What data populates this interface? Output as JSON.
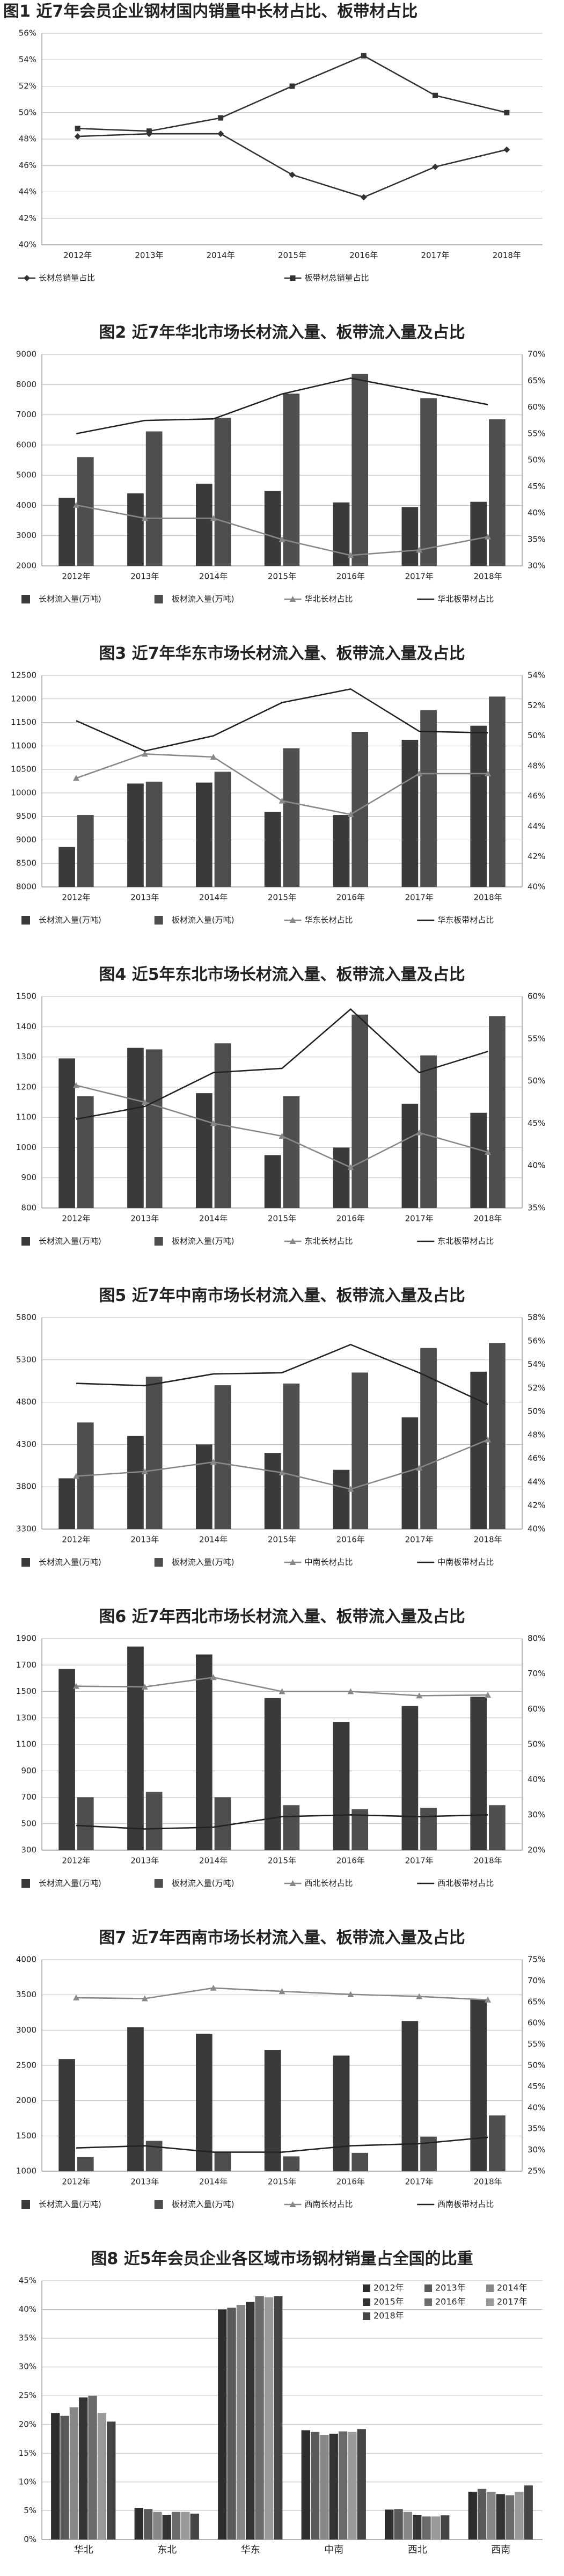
{
  "chart_data": [
    {
      "id": "fig1",
      "type": "line",
      "title": "图1 近7年会员企业钢材国内销量中长材占比、板带材占比",
      "categories": [
        "2012年",
        "2013年",
        "2014年",
        "2015年",
        "2016年",
        "2017年",
        "2018年"
      ],
      "ylim": [
        40,
        56
      ],
      "yticks": [
        "40%",
        "42%",
        "44%",
        "46%",
        "48%",
        "50%",
        "52%",
        "54%",
        "56%"
      ],
      "grid": true,
      "legend_position": "bottom",
      "series": [
        {
          "name": "长材总销量占比",
          "kind": "line",
          "axis": "left",
          "marker": "diamond",
          "color": "#333333",
          "values": [
            48.2,
            48.4,
            48.4,
            45.3,
            43.6,
            45.9,
            47.2
          ]
        },
        {
          "name": "板带材总销量占比",
          "kind": "line",
          "axis": "left",
          "marker": "square",
          "color": "#333333",
          "values": [
            48.8,
            48.6,
            49.6,
            52.0,
            54.3,
            51.3,
            50.0
          ]
        }
      ]
    },
    {
      "id": "fig2",
      "type": "bar",
      "title": "图2 近7年华北市场长材流入量、板带流入量及占比",
      "categories": [
        "2012年",
        "2013年",
        "2014年",
        "2015年",
        "2016年",
        "2017年",
        "2018年"
      ],
      "ylim": [
        2000,
        9000
      ],
      "yticks": [
        "2000",
        "3000",
        "4000",
        "5000",
        "6000",
        "7000",
        "8000",
        "9000"
      ],
      "y2lim": [
        30,
        70
      ],
      "y2ticks": [
        "30%",
        "35%",
        "40%",
        "45%",
        "50%",
        "55%",
        "60%",
        "65%",
        "70%"
      ],
      "grid": true,
      "legend_position": "bottom",
      "series": [
        {
          "name": "长材流入量(万吨)",
          "kind": "bar",
          "axis": "left",
          "color": "#3a3a3a",
          "values": [
            4250,
            4400,
            4720,
            4480,
            4100,
            3950,
            4120
          ]
        },
        {
          "name": "板材流入量(万吨)",
          "kind": "bar",
          "axis": "left",
          "color": "#4e4e4e",
          "values": [
            5600,
            6450,
            6900,
            7700,
            8350,
            7550,
            6850
          ]
        },
        {
          "name": "华北长材占比",
          "kind": "line",
          "axis": "right",
          "marker": "triangle",
          "color": "#888888",
          "values": [
            41.5,
            39.0,
            39.0,
            35.0,
            32.0,
            33.0,
            35.5
          ]
        },
        {
          "name": "华北板带材占比",
          "kind": "line",
          "axis": "right",
          "marker": "none",
          "color": "#222222",
          "values": [
            55.0,
            57.5,
            57.8,
            62.5,
            65.5,
            63.0,
            60.5
          ]
        }
      ]
    },
    {
      "id": "fig3",
      "type": "bar",
      "title": "图3 近7年华东市场长材流入量、板带流入量及占比",
      "categories": [
        "2012年",
        "2013年",
        "2014年",
        "2015年",
        "2016年",
        "2017年",
        "2018年"
      ],
      "ylim": [
        8000,
        12500
      ],
      "yticks": [
        "8000",
        "8500",
        "9000",
        "9500",
        "10000",
        "10500",
        "11000",
        "11500",
        "12000",
        "12500"
      ],
      "y2lim": [
        40,
        54
      ],
      "y2ticks": [
        "40%",
        "42%",
        "44%",
        "46%",
        "48%",
        "50%",
        "52%",
        "54%"
      ],
      "grid": true,
      "legend_position": "bottom",
      "series": [
        {
          "name": "长材流入量(万吨)",
          "kind": "bar",
          "axis": "left",
          "color": "#3a3a3a",
          "values": [
            8850,
            10200,
            10220,
            9600,
            9530,
            11130,
            11430
          ]
        },
        {
          "name": "板材流入量(万吨)",
          "kind": "bar",
          "axis": "left",
          "color": "#4e4e4e",
          "values": [
            9530,
            10240,
            10450,
            10950,
            11300,
            11760,
            12050
          ]
        },
        {
          "name": "华东长材占比",
          "kind": "line",
          "axis": "right",
          "marker": "triangle",
          "color": "#888888",
          "values": [
            47.2,
            48.8,
            48.6,
            45.7,
            44.8,
            47.5,
            47.5
          ]
        },
        {
          "name": "华东板带材占比",
          "kind": "line",
          "axis": "right",
          "marker": "none",
          "color": "#222222",
          "values": [
            51.0,
            49.0,
            50.0,
            52.2,
            53.1,
            50.3,
            50.2
          ]
        }
      ]
    },
    {
      "id": "fig4",
      "type": "bar",
      "title": "图4 近5年东北市场长材流入量、板带流入量及占比",
      "categories": [
        "2012年",
        "2013年",
        "2014年",
        "2015年",
        "2016年",
        "2017年",
        "2018年"
      ],
      "ylim": [
        800,
        1500
      ],
      "yticks": [
        "800",
        "900",
        "1000",
        "1100",
        "1200",
        "1300",
        "1400",
        "1500"
      ],
      "y2lim": [
        35,
        60
      ],
      "y2ticks": [
        "35%",
        "40%",
        "45%",
        "50%",
        "55%",
        "60%"
      ],
      "grid": true,
      "legend_position": "bottom",
      "series": [
        {
          "name": "长材流入量(万吨)",
          "kind": "bar",
          "axis": "left",
          "color": "#3a3a3a",
          "values": [
            1295,
            1330,
            1180,
            975,
            1000,
            1145,
            1115
          ]
        },
        {
          "name": "板材流入量(万吨)",
          "kind": "bar",
          "axis": "left",
          "color": "#4e4e4e",
          "values": [
            1170,
            1325,
            1345,
            1170,
            1440,
            1305,
            1435
          ]
        },
        {
          "name": "东北长材占比",
          "kind": "line",
          "axis": "right",
          "marker": "triangle",
          "color": "#888888",
          "values": [
            49.5,
            47.5,
            45.0,
            43.5,
            39.8,
            43.9,
            41.6
          ]
        },
        {
          "name": "东北板带材占比",
          "kind": "line",
          "axis": "right",
          "marker": "none",
          "color": "#222222",
          "values": [
            45.5,
            47.0,
            51.0,
            51.5,
            58.5,
            51.0,
            53.5
          ]
        }
      ]
    },
    {
      "id": "fig5",
      "type": "bar",
      "title": "图5 近7年中南市场长材流入量、板带流入量及占比",
      "categories": [
        "2012年",
        "2013年",
        "2014年",
        "2015年",
        "2016年",
        "2017年",
        "2018年"
      ],
      "ylim": [
        3300,
        5800
      ],
      "yticks": [
        "3300",
        "3800",
        "4300",
        "4800",
        "5300",
        "5800"
      ],
      "y2lim": [
        40,
        58
      ],
      "y2ticks": [
        "40%",
        "42%",
        "44%",
        "46%",
        "48%",
        "50%",
        "52%",
        "54%",
        "56%",
        "58%"
      ],
      "grid": true,
      "legend_position": "bottom",
      "series": [
        {
          "name": "长材流入量(万吨)",
          "kind": "bar",
          "axis": "left",
          "color": "#3a3a3a",
          "values": [
            3900,
            4400,
            4300,
            4200,
            4000,
            4620,
            5160
          ]
        },
        {
          "name": "板材流入量(万吨)",
          "kind": "bar",
          "axis": "left",
          "color": "#4e4e4e",
          "values": [
            4560,
            5100,
            5000,
            5020,
            5150,
            5440,
            5500
          ]
        },
        {
          "name": "中南长材占比",
          "kind": "line",
          "axis": "right",
          "marker": "triangle",
          "color": "#888888",
          "values": [
            44.5,
            44.9,
            45.7,
            44.8,
            43.4,
            45.2,
            47.6
          ]
        },
        {
          "name": "中南板带材占比",
          "kind": "line",
          "axis": "right",
          "marker": "none",
          "color": "#222222",
          "values": [
            52.4,
            52.2,
            53.2,
            53.3,
            55.7,
            53.3,
            50.6
          ]
        }
      ]
    },
    {
      "id": "fig6",
      "type": "bar",
      "title": "图6 近7年西北市场长材流入量、板带流入量及占比",
      "categories": [
        "2012年",
        "2013年",
        "2014年",
        "2015年",
        "2016年",
        "2017年",
        "2018年"
      ],
      "ylim": [
        300,
        1900
      ],
      "yticks": [
        "300",
        "500",
        "700",
        "900",
        "1100",
        "1300",
        "1500",
        "1700",
        "1900"
      ],
      "y2lim": [
        20,
        80
      ],
      "y2ticks": [
        "20%",
        "30%",
        "40%",
        "50%",
        "60%",
        "70%",
        "80%"
      ],
      "grid": true,
      "legend_position": "bottom",
      "series": [
        {
          "name": "长材流入量(万吨)",
          "kind": "bar",
          "axis": "left",
          "color": "#3a3a3a",
          "values": [
            1670,
            1840,
            1780,
            1450,
            1270,
            1390,
            1460
          ]
        },
        {
          "name": "板材流入量(万吨)",
          "kind": "bar",
          "axis": "left",
          "color": "#4e4e4e",
          "values": [
            700,
            740,
            700,
            640,
            610,
            620,
            640
          ]
        },
        {
          "name": "西北长材占比",
          "kind": "line",
          "axis": "right",
          "marker": "triangle",
          "color": "#888888",
          "values": [
            66.5,
            66.3,
            69.0,
            65.0,
            65.0,
            63.8,
            64.0
          ]
        },
        {
          "name": "西北板带材占比",
          "kind": "line",
          "axis": "right",
          "marker": "none",
          "color": "#222222",
          "values": [
            27.0,
            26.0,
            26.5,
            29.5,
            30.0,
            29.5,
            30.0
          ]
        }
      ]
    },
    {
      "id": "fig7",
      "type": "bar",
      "title": "图7 近7年西南市场长材流入量、板带流入量及占比",
      "categories": [
        "2012年",
        "2013年",
        "2014年",
        "2015年",
        "2016年",
        "2017年",
        "2018年"
      ],
      "ylim": [
        1000,
        4000
      ],
      "yticks": [
        "1000",
        "1500",
        "2000",
        "2500",
        "3000",
        "3500",
        "4000"
      ],
      "y2lim": [
        25,
        75
      ],
      "y2ticks": [
        "25%",
        "30%",
        "35%",
        "40%",
        "45%",
        "50%",
        "55%",
        "60%",
        "65%",
        "70%",
        "75%"
      ],
      "grid": true,
      "legend_position": "bottom",
      "series": [
        {
          "name": "长材流入量(万吨)",
          "kind": "bar",
          "axis": "left",
          "color": "#3a3a3a",
          "values": [
            2590,
            3040,
            2950,
            2720,
            2640,
            3130,
            3440
          ]
        },
        {
          "name": "板材流入量(万吨)",
          "kind": "bar",
          "axis": "left",
          "color": "#4e4e4e",
          "values": [
            1200,
            1430,
            1270,
            1210,
            1260,
            1490,
            1790
          ]
        },
        {
          "name": "西南长材占比",
          "kind": "line",
          "axis": "right",
          "marker": "triangle",
          "color": "#888888",
          "values": [
            66.0,
            65.8,
            68.3,
            67.5,
            66.8,
            66.3,
            65.5
          ]
        },
        {
          "name": "西南板带材占比",
          "kind": "line",
          "axis": "right",
          "marker": "none",
          "color": "#222222",
          "values": [
            30.5,
            31.0,
            29.5,
            29.5,
            31.0,
            31.5,
            33.0
          ]
        }
      ]
    },
    {
      "id": "fig8",
      "type": "bar",
      "title": "图8 近5年会员企业各区域市场钢材销量占全国的比重",
      "categories": [
        "华北",
        "东北",
        "华东",
        "中南",
        "西北",
        "西南"
      ],
      "ylim": [
        0,
        45
      ],
      "yticks": [
        "0%",
        "5%",
        "10%",
        "15%",
        "20%",
        "25%",
        "30%",
        "35%",
        "40%",
        "45%"
      ],
      "grid": true,
      "legend_position": "top-right",
      "series": [
        {
          "name": "2012年",
          "kind": "bar",
          "color": "#2d2d2d",
          "values": [
            22.0,
            5.5,
            40.0,
            19.0,
            5.2,
            8.3
          ]
        },
        {
          "name": "2013年",
          "kind": "bar",
          "color": "#5a5a5a",
          "values": [
            21.5,
            5.3,
            40.3,
            18.7,
            5.3,
            8.8
          ]
        },
        {
          "name": "2014年",
          "kind": "bar",
          "color": "#888888",
          "values": [
            23.0,
            4.8,
            40.8,
            18.2,
            4.8,
            8.3
          ]
        },
        {
          "name": "2015年",
          "kind": "bar",
          "color": "#333333",
          "values": [
            24.7,
            4.3,
            41.3,
            18.4,
            4.3,
            7.9
          ]
        },
        {
          "name": "2016年",
          "kind": "bar",
          "color": "#6a6a6a",
          "values": [
            25.0,
            4.8,
            42.3,
            18.8,
            4.0,
            7.7
          ]
        },
        {
          "name": "2017年",
          "kind": "bar",
          "color": "#999999",
          "values": [
            22.0,
            4.8,
            42.1,
            18.7,
            4.0,
            8.3
          ]
        },
        {
          "name": "2018年",
          "kind": "bar",
          "color": "#444444",
          "values": [
            20.5,
            4.5,
            42.3,
            19.2,
            4.2,
            9.4
          ]
        }
      ]
    }
  ]
}
